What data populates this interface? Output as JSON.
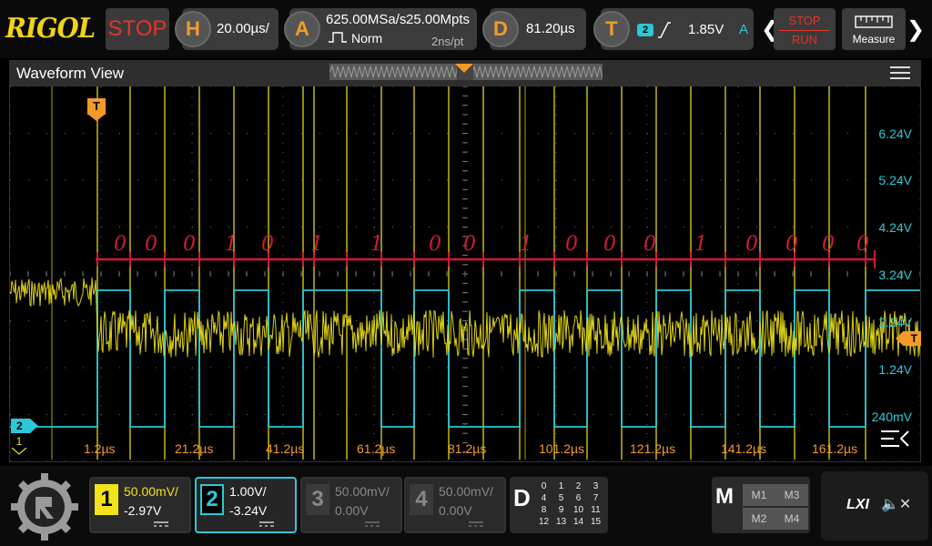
{
  "brand": "RIGOL",
  "run_state": "STOP",
  "horizontal": {
    "icon": "H",
    "timebase": "20.00µs/"
  },
  "acquire": {
    "icon": "A",
    "sample_rate": "625.00MSa/s",
    "memory_depth": "25.00Mpts",
    "mode": "Norm",
    "resolution": "2ns/pt"
  },
  "delay": {
    "icon": "D",
    "value": "81.20µs"
  },
  "trigger": {
    "icon": "T",
    "source": "2",
    "level": "1.85V",
    "sweep": "A"
  },
  "run_stop_button": {
    "top": "STOP",
    "bottom": "RUN"
  },
  "measure_button": {
    "label": "Measure"
  },
  "waveform_view": {
    "title": "Waveform View",
    "voltage_labels": [
      "6.24V",
      "5.24V",
      "4.24V",
      "3.24V",
      "2.24V",
      "1.24V",
      "240mV"
    ],
    "time_labels": [
      "1.2µs",
      "21.2µs",
      "41.2µs",
      "61.2µs",
      "81.2µs",
      "101.2µs",
      "121.2µs",
      "141.2µs",
      "161.2µs"
    ],
    "trigger_marker": "T",
    "ch2_marker": "2",
    "ch1_marker": "1",
    "annotation_bits": [
      "0",
      "0",
      "0",
      "1",
      "0",
      "1",
      "1",
      "0",
      "0",
      "1",
      "0",
      "0",
      "0",
      "1",
      "0",
      "0",
      "0",
      "0"
    ]
  },
  "channels": [
    {
      "num": "1",
      "scale": "50.00mV/",
      "offset": "-2.97V",
      "color": "#f2e21c",
      "active": false,
      "enabled": true
    },
    {
      "num": "2",
      "scale": "1.00V/",
      "offset": "-3.24V",
      "color": "#2ac8d8",
      "active": true,
      "enabled": true
    },
    {
      "num": "3",
      "scale": "50.00mV/",
      "offset": "0.00V",
      "color": "#888888",
      "active": false,
      "enabled": false
    },
    {
      "num": "4",
      "scale": "50.00mV/",
      "offset": "0.00V",
      "color": "#888888",
      "active": false,
      "enabled": false
    }
  ],
  "digital": {
    "label": "D",
    "channels": [
      "0",
      "1",
      "2",
      "3",
      "4",
      "5",
      "6",
      "7",
      "8",
      "9",
      "10",
      "11",
      "12",
      "13",
      "14",
      "15"
    ]
  },
  "math": {
    "label": "M",
    "items": [
      "M1",
      "M3",
      "M2",
      "M4"
    ]
  },
  "lxi": {
    "label": "LXI"
  },
  "colors": {
    "ch1": "#f2e21c",
    "ch2": "#2ac8d8",
    "accent": "#f39a2b",
    "stop": "#e8322c",
    "annotation": "#d01a3a",
    "grid": "#5a5a5a"
  }
}
